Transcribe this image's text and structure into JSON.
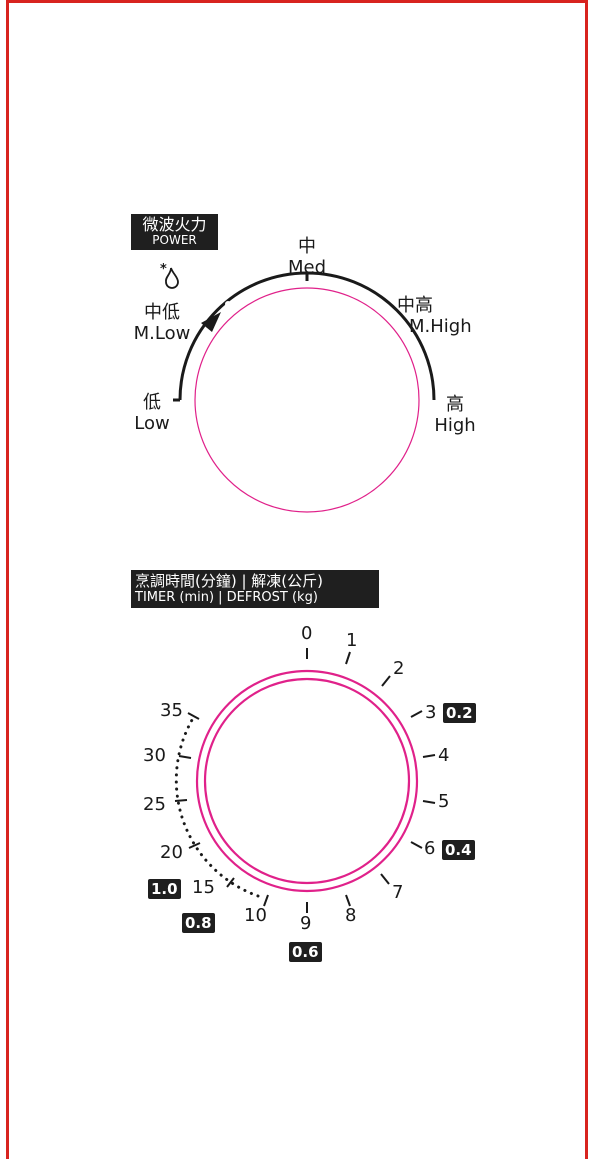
{
  "power_section": {
    "header_zh": "微波火力",
    "header_en": "POWER",
    "levels": {
      "low": {
        "zh": "低",
        "en": "Low"
      },
      "mlow": {
        "zh": "中低",
        "en": "M.Low"
      },
      "med": {
        "zh": "中",
        "en": "Med"
      },
      "mhigh": {
        "zh": "中高",
        "en": "M.High"
      },
      "high": {
        "zh": "高",
        "en": "High"
      }
    },
    "defrost_icon": "snowflake-drop-icon"
  },
  "timer_section": {
    "header_zh": "烹調時間(分鐘) | 解凍(公斤)",
    "header_en": "TIMER (min) | DEFROST (kg)",
    "scale": {
      "n0": "0",
      "n1": "1",
      "n2": "2",
      "n3": "3",
      "n4": "4",
      "n5": "5",
      "n6": "6",
      "n7": "7",
      "n8": "8",
      "n9": "9",
      "n10": "10",
      "n15": "15",
      "n20": "20",
      "n25": "25",
      "n30": "30",
      "n35": "35"
    },
    "defrost": {
      "b02": "0.2",
      "b04": "0.4",
      "b06": "0.6",
      "b08": "0.8",
      "b10": "1.0"
    }
  },
  "colors": {
    "frame": "#d8231f",
    "knob": "#e0218a",
    "ink": "#1a1a1a"
  }
}
